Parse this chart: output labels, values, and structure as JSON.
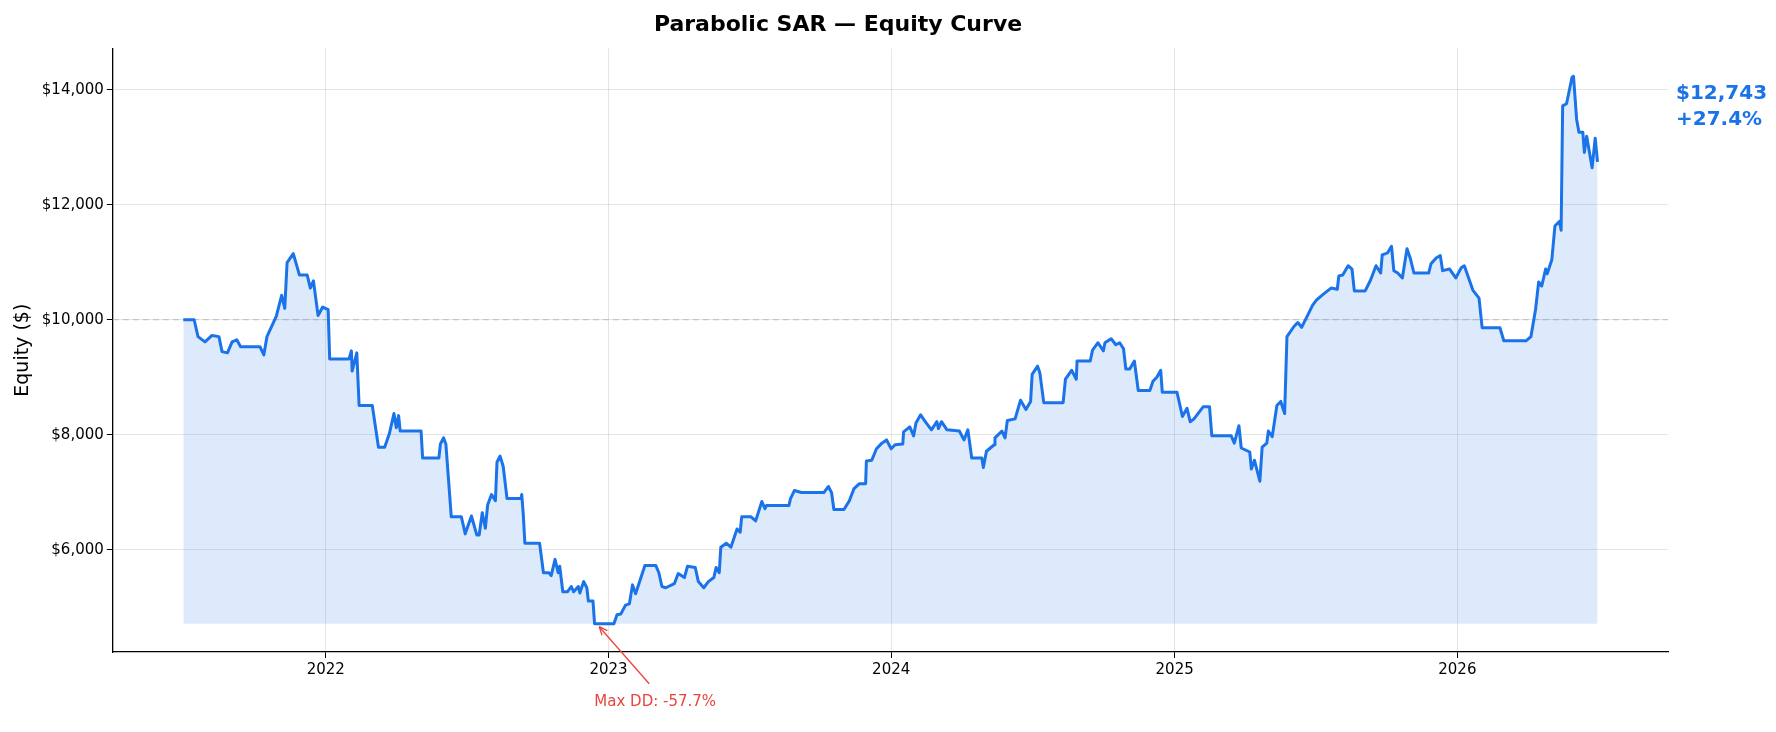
{
  "chart_data": {
    "type": "area",
    "title": "Parabolic SAR — Equity Curve",
    "ylabel": "Equity ($)",
    "x": [
      "2021-07-01",
      "2021-07-15",
      "2021-07-20",
      "2021-07-29",
      "2021-08-07",
      "2021-08-16",
      "2021-08-20",
      "2021-08-27",
      "2021-09-02",
      "2021-09-08",
      "2021-09-13",
      "2021-10-08",
      "2021-10-13",
      "2021-10-17",
      "2021-10-29",
      "2021-11-05",
      "2021-11-09",
      "2021-11-12",
      "2021-11-20",
      "2021-11-28",
      "2021-12-08",
      "2021-12-12",
      "2021-12-16",
      "2021-12-22",
      "2021-12-28",
      "2022-01-04",
      "2022-01-06",
      "2022-01-31",
      "2022-02-03",
      "2022-02-04",
      "2022-02-10",
      "2022-02-13",
      "2022-03-02",
      "2022-03-10",
      "2022-03-18",
      "2022-03-24",
      "2022-03-30",
      "2022-04-02",
      "2022-04-05",
      "2022-04-07",
      "2022-05-04",
      "2022-05-06",
      "2022-05-27",
      "2022-05-29",
      "2022-06-02",
      "2022-06-05",
      "2022-06-12",
      "2022-06-25",
      "2022-06-30",
      "2022-07-08",
      "2022-07-15",
      "2022-07-18",
      "2022-07-22",
      "2022-07-26",
      "2022-07-29",
      "2022-08-03",
      "2022-08-08",
      "2022-08-10",
      "2022-08-14",
      "2022-08-18",
      "2022-08-23",
      "2022-09-10",
      "2022-09-11",
      "2022-09-13",
      "2022-09-15",
      "2022-10-04",
      "2022-10-09",
      "2022-10-16",
      "2022-10-19",
      "2022-10-24",
      "2022-10-28",
      "2022-10-30",
      "2022-11-03",
      "2022-11-09",
      "2022-11-14",
      "2022-11-17",
      "2022-11-23",
      "2022-11-25",
      "2022-11-30",
      "2022-12-04",
      "2022-12-06",
      "2022-12-12",
      "2022-12-14",
      "2023-01-08",
      "2023-01-12",
      "2023-01-17",
      "2023-01-23",
      "2023-01-28",
      "2023-02-01",
      "2023-02-05",
      "2023-02-17",
      "2023-03-03",
      "2023-03-07",
      "2023-03-11",
      "2023-03-16",
      "2023-03-27",
      "2023-04-01",
      "2023-04-09",
      "2023-04-13",
      "2023-04-23",
      "2023-04-27",
      "2023-05-04",
      "2023-05-10",
      "2023-05-17",
      "2023-05-20",
      "2023-05-24",
      "2023-05-26",
      "2023-06-02",
      "2023-06-08",
      "2023-06-16",
      "2023-06-20",
      "2023-06-22",
      "2023-07-04",
      "2023-07-10",
      "2023-07-18",
      "2023-07-22",
      "2023-07-24",
      "2023-08-22",
      "2023-08-24",
      "2023-08-29",
      "2023-09-07",
      "2023-10-06",
      "2023-10-12",
      "2023-10-16",
      "2023-10-19",
      "2023-11-01",
      "2023-11-08",
      "2023-11-14",
      "2023-11-21",
      "2023-11-29",
      "2023-11-30",
      "2023-12-07",
      "2023-12-13",
      "2023-12-20",
      "2023-12-26",
      "2024-01-01",
      "2024-01-06",
      "2024-01-16",
      "2024-01-17",
      "2024-01-25",
      "2024-01-30",
      "2024-02-02",
      "2024-02-08",
      "2024-02-14",
      "2024-02-22",
      "2024-02-29",
      "2024-03-02",
      "2024-03-06",
      "2024-03-13",
      "2024-03-29",
      "2024-04-04",
      "2024-04-09",
      "2024-04-14",
      "2024-04-27",
      "2024-04-29",
      "2024-05-03",
      "2024-05-13",
      "2024-05-14",
      "2024-05-23",
      "2024-05-27",
      "2024-05-30",
      "2024-06-09",
      "2024-06-16",
      "2024-06-23",
      "2024-06-29",
      "2024-07-01",
      "2024-07-08",
      "2024-07-11",
      "2024-07-16",
      "2024-08-10",
      "2024-08-13",
      "2024-08-21",
      "2024-08-27",
      "2024-08-28",
      "2024-09-14",
      "2024-09-17",
      "2024-09-24",
      "2024-10-01",
      "2024-10-03",
      "2024-10-11",
      "2024-10-17",
      "2024-10-22",
      "2024-10-27",
      "2024-10-30",
      "2024-11-04",
      "2024-11-10",
      "2024-11-15",
      "2024-11-30",
      "2024-12-04",
      "2024-12-09",
      "2024-12-14",
      "2024-12-16",
      "2025-01-04",
      "2025-01-11",
      "2025-01-17",
      "2025-01-21",
      "2025-01-26",
      "2025-02-07",
      "2025-02-15",
      "2025-02-18",
      "2025-03-15",
      "2025-03-19",
      "2025-03-25",
      "2025-03-28",
      "2025-04-08",
      "2025-04-10",
      "2025-04-14",
      "2025-04-21",
      "2025-04-24",
      "2025-04-30",
      "2025-05-02",
      "2025-05-07",
      "2025-05-13",
      "2025-05-18",
      "2025-05-23",
      "2025-05-26",
      "2025-06-04",
      "2025-06-09",
      "2025-06-14",
      "2025-06-21",
      "2025-06-28",
      "2025-07-03",
      "2025-07-12",
      "2025-07-22",
      "2025-07-30",
      "2025-08-01",
      "2025-08-06",
      "2025-08-13",
      "2025-08-18",
      "2025-08-21",
      "2025-09-04",
      "2025-09-11",
      "2025-09-18",
      "2025-09-24",
      "2025-09-26",
      "2025-10-03",
      "2025-10-08",
      "2025-10-11",
      "2025-10-16",
      "2025-10-22",
      "2025-10-28",
      "2025-11-01",
      "2025-11-06",
      "2025-11-25",
      "2025-11-28",
      "2025-12-05",
      "2025-12-10",
      "2025-12-13",
      "2025-12-22",
      "2025-12-30",
      "2026-01-06",
      "2026-01-10",
      "2026-01-21",
      "2026-01-29",
      "2026-02-02",
      "2026-02-25",
      "2026-03-02",
      "2026-03-31",
      "2026-04-06",
      "2026-04-12",
      "2026-04-16",
      "2026-04-20",
      "2026-04-25",
      "2026-04-27",
      "2026-05-03",
      "2026-05-07",
      "2026-05-13",
      "2026-05-15",
      "2026-05-17",
      "2026-05-22",
      "2026-05-29",
      "2026-05-31",
      "2026-06-04",
      "2026-06-07",
      "2026-06-12",
      "2026-06-14",
      "2026-06-17",
      "2026-06-24",
      "2026-06-28",
      "2026-07-01"
    ],
    "series": [
      {
        "color": "#1a73e8",
        "values": [
          10000,
          10000,
          9706,
          9615,
          9727,
          9706,
          9445,
          9424,
          9615,
          9650,
          9530,
          9530,
          9389,
          9706,
          10058,
          10424,
          10198,
          10994,
          11149,
          10776,
          10776,
          10550,
          10677,
          10072,
          10220,
          10177,
          9318,
          9318,
          9459,
          9107,
          9424,
          8509,
          8509,
          7784,
          7784,
          8016,
          8368,
          8122,
          8333,
          8065,
          8065,
          7594,
          7594,
          7840,
          7946,
          7840,
          6573,
          6573,
          6277,
          6587,
          6256,
          6256,
          6643,
          6376,
          6784,
          6960,
          6854,
          7523,
          7629,
          7453,
          6890,
          6890,
          6960,
          6608,
          6115,
          6115,
          5601,
          5601,
          5552,
          5834,
          5601,
          5714,
          5270,
          5270,
          5362,
          5270,
          5362,
          5250,
          5447,
          5340,
          5108,
          5108,
          4715,
          4715,
          4870,
          4885,
          5038,
          5060,
          5390,
          5235,
          5728,
          5728,
          5601,
          5362,
          5340,
          5411,
          5587,
          5517,
          5714,
          5693,
          5447,
          5340,
          5447,
          5517,
          5693,
          5601,
          6045,
          6115,
          6045,
          6362,
          6305,
          6573,
          6573,
          6502,
          6840,
          6714,
          6770,
          6770,
          6890,
          7030,
          6995,
          6995,
          7101,
          6995,
          6700,
          6700,
          6854,
          7065,
          7150,
          7150,
          7544,
          7558,
          7756,
          7854,
          7910,
          7756,
          7826,
          7840,
          8051,
          8136,
          7981,
          8206,
          8347,
          8227,
          8086,
          8227,
          8107,
          8227,
          8086,
          8065,
          7910,
          8086,
          7594,
          7594,
          7432,
          7713,
          7826,
          7946,
          8065,
          7946,
          8248,
          8276,
          8600,
          8438,
          8579,
          9051,
          9192,
          9072,
          8558,
          8558,
          8966,
          9121,
          8966,
          9283,
          9283,
          9473,
          9600,
          9459,
          9600,
          9670,
          9565,
          9600,
          9494,
          9142,
          9142,
          9283,
          8769,
          8769,
          8931,
          9001,
          9121,
          8741,
          8741,
          8319,
          8460,
          8227,
          8276,
          8488,
          8488,
          7981,
          7981,
          7854,
          8157,
          7770,
          7700,
          7404,
          7558,
          7192,
          7784,
          7854,
          8065,
          7967,
          8509,
          8579,
          8368,
          9706,
          9882,
          9952,
          9868,
          10058,
          10248,
          10339,
          10445,
          10550,
          10529,
          10762,
          10776,
          10938,
          10881,
          10501,
          10501,
          10691,
          10938,
          10811,
          11128,
          11163,
          11276,
          10853,
          10811,
          10726,
          11234,
          11078,
          10811,
          10811,
          10973,
          11078,
          11114,
          10853,
          10881,
          10726,
          10902,
          10938,
          10515,
          10374,
          9861,
          9861,
          9635,
          9635,
          9706,
          10177,
          10656,
          10586,
          10881,
          10797,
          11044,
          11628,
          11712,
          11557,
          13718,
          13754,
          14211,
          14232,
          13486,
          13261,
          13261,
          12909,
          13190,
          12641,
          13155,
          12743
        ]
      }
    ],
    "xlim": [
      "2021-04-01",
      "2026-09-30"
    ],
    "xticks": [
      {
        "value": "2022-01-01",
        "label": "2022"
      },
      {
        "value": "2023-01-01",
        "label": "2023"
      },
      {
        "value": "2024-01-01",
        "label": "2024"
      },
      {
        "value": "2025-01-01",
        "label": "2025"
      },
      {
        "value": "2026-01-01",
        "label": "2026"
      }
    ],
    "ylim": [
      4223,
      14717
    ],
    "yticks": [
      {
        "value": 6000,
        "label": "$6,000"
      },
      {
        "value": 8000,
        "label": "$8,000"
      },
      {
        "value": 10000,
        "label": "$10,000"
      },
      {
        "value": 12000,
        "label": "$12,000"
      },
      {
        "value": 14000,
        "label": "$14,000"
      }
    ],
    "grid": true,
    "ref_lines": [
      {
        "axis": "y",
        "value": 10000,
        "color": "#bbbbbb",
        "line_style": "dashed"
      }
    ],
    "annotations": [
      {
        "text": "Max DD: -57.7%",
        "x": "2022-12-20",
        "y": 4715
      },
      "$12,743\n+27.4%"
    ]
  }
}
